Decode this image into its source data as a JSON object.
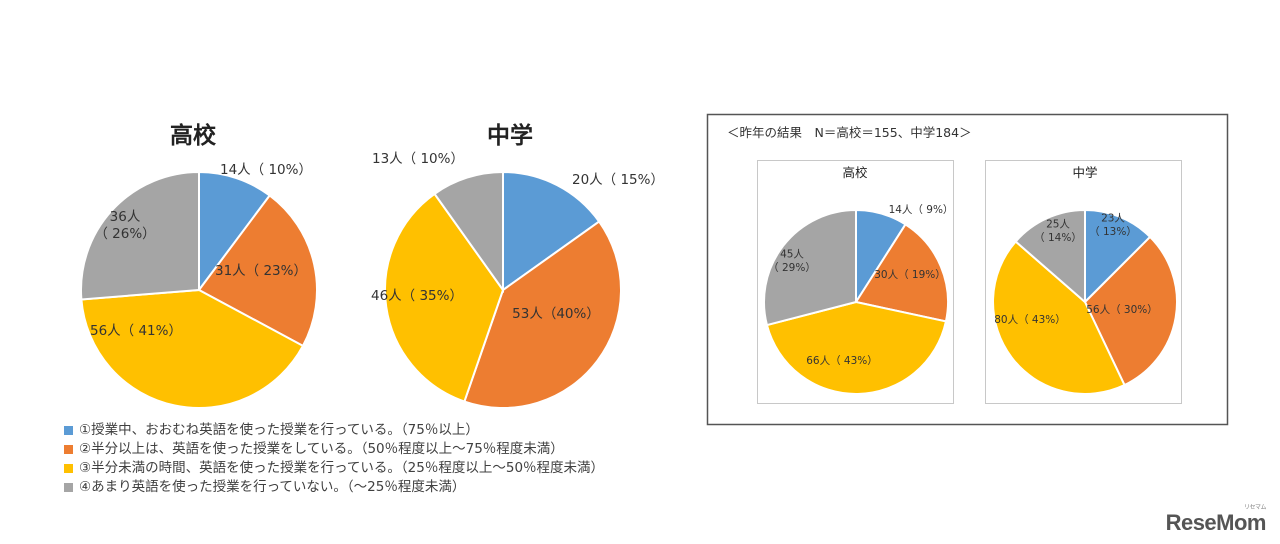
{
  "colors": {
    "blue": "#5b9bd5",
    "orange": "#ed7d31",
    "yellow": "#ffc000",
    "gray": "#a5a5a5"
  },
  "legend": [
    {
      "color": "blue",
      "text": "①授業中、おおむね英語を使った授業を行っている。（75％以上）"
    },
    {
      "color": "orange",
      "text": "②半分以上は、英語を使った授業をしている。（50％程度以上〜75％程度未満）"
    },
    {
      "color": "yellow",
      "text": "③半分未満の時間、英語を使った授業を行っている。（25％程度以上〜50％程度未満）"
    },
    {
      "color": "gray",
      "text": "④あまり英語を使った授業を行っていない。（〜25％程度未満）"
    }
  ],
  "last_year_box": {
    "title": "＜昨年の結果　N＝高校＝155、中学184＞"
  },
  "logo": "ReseMom",
  "logo_small": "リセマム",
  "chart_data": [
    {
      "type": "pie",
      "title": "高校",
      "slices": [
        {
          "color": "blue",
          "value": 14,
          "percent": 10,
          "label": "14人（ 10%）"
        },
        {
          "color": "orange",
          "value": 31,
          "percent": 23,
          "label": "31人（ 23%）"
        },
        {
          "color": "yellow",
          "value": 56,
          "percent": 41,
          "label": "56人（ 41%）"
        },
        {
          "color": "gray",
          "value": 36,
          "percent": 26,
          "label": "36人\n（ 26%）"
        }
      ]
    },
    {
      "type": "pie",
      "title": "中学",
      "slices": [
        {
          "color": "blue",
          "value": 20,
          "percent": 15,
          "label": "20人（ 15%）"
        },
        {
          "color": "orange",
          "value": 53,
          "percent": 40,
          "label": "53人（40%）"
        },
        {
          "color": "yellow",
          "value": 46,
          "percent": 35,
          "label": "46人（ 35%）"
        },
        {
          "color": "gray",
          "value": 13,
          "percent": 10,
          "label": "13人（ 10%）"
        }
      ]
    },
    {
      "type": "pie",
      "title": "高校",
      "group": "昨年の結果",
      "slices": [
        {
          "color": "blue",
          "value": 14,
          "percent": 9,
          "label": "14人（ 9%）"
        },
        {
          "color": "orange",
          "value": 30,
          "percent": 19,
          "label": "30人（ 19%）"
        },
        {
          "color": "yellow",
          "value": 66,
          "percent": 43,
          "label": "66人（ 43%）"
        },
        {
          "color": "gray",
          "value": 45,
          "percent": 29,
          "label": "45人\n（ 29%）"
        }
      ]
    },
    {
      "type": "pie",
      "title": "中学",
      "group": "昨年の結果",
      "slices": [
        {
          "color": "blue",
          "value": 23,
          "percent": 13,
          "label": "23人\n（ 13%）"
        },
        {
          "color": "orange",
          "value": 56,
          "percent": 30,
          "label": "56人（ 30%）"
        },
        {
          "color": "yellow",
          "value": 80,
          "percent": 43,
          "label": "80人（ 43%）"
        },
        {
          "color": "gray",
          "value": 25,
          "percent": 14,
          "label": "25人\n（ 14%）"
        }
      ]
    }
  ]
}
